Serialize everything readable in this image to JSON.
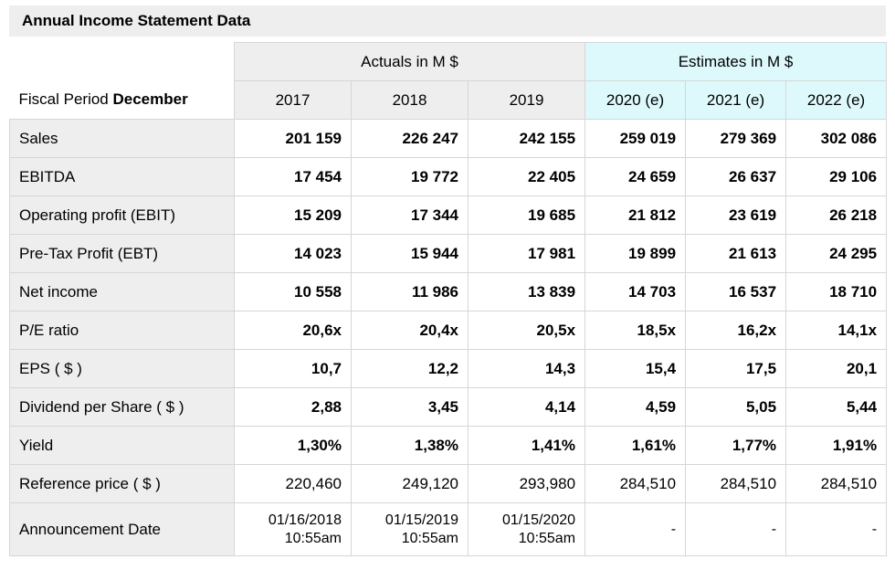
{
  "title": "Annual Income Statement Data",
  "header": {
    "fiscal_period_prefix": "Fiscal Period ",
    "fiscal_period_month": "December",
    "actuals_label": "Actuals in M $",
    "estimates_label": "Estimates in M $",
    "years": [
      "2017",
      "2018",
      "2019",
      "2020 (e)",
      "2021 (e)",
      "2022 (e)"
    ]
  },
  "rows": [
    {
      "label": "Sales",
      "values": [
        "201 159",
        "226 247",
        "242 155",
        "259 019",
        "279 369",
        "302 086"
      ]
    },
    {
      "label": "EBITDA",
      "values": [
        "17 454",
        "19 772",
        "22 405",
        "24 659",
        "26 637",
        "29 106"
      ]
    },
    {
      "label": "Operating profit (EBIT)",
      "values": [
        "15 209",
        "17 344",
        "19 685",
        "21 812",
        "23 619",
        "26 218"
      ]
    },
    {
      "label": "Pre-Tax Profit (EBT)",
      "values": [
        "14 023",
        "15 944",
        "17 981",
        "19 899",
        "21 613",
        "24 295"
      ]
    },
    {
      "label": "Net income",
      "values": [
        "10 558",
        "11 986",
        "13 839",
        "14 703",
        "16 537",
        "18 710"
      ]
    },
    {
      "label": "P/E ratio",
      "values": [
        "20,6x",
        "20,4x",
        "20,5x",
        "18,5x",
        "16,2x",
        "14,1x"
      ]
    },
    {
      "label": "EPS ( $ )",
      "values": [
        "10,7",
        "12,2",
        "14,3",
        "15,4",
        "17,5",
        "20,1"
      ]
    },
    {
      "label": "Dividend per Share ( $ )",
      "values": [
        "2,88",
        "3,45",
        "4,14",
        "4,59",
        "5,05",
        "5,44"
      ]
    },
    {
      "label": "Yield",
      "values": [
        "1,30%",
        "1,38%",
        "1,41%",
        "1,61%",
        "1,77%",
        "1,91%"
      ]
    },
    {
      "label": "Reference price ( $ )",
      "values": [
        "220,460",
        "249,120",
        "293,980",
        "284,510",
        "284,510",
        "284,510"
      ]
    }
  ],
  "announcement": {
    "label": "Announcement Date",
    "dates": [
      {
        "date": "01/16/2018",
        "time": "10:55am"
      },
      {
        "date": "01/15/2019",
        "time": "10:55am"
      },
      {
        "date": "01/15/2020",
        "time": "10:55am"
      },
      {
        "date": "-",
        "time": ""
      },
      {
        "date": "-",
        "time": ""
      },
      {
        "date": "-",
        "time": ""
      }
    ]
  }
}
